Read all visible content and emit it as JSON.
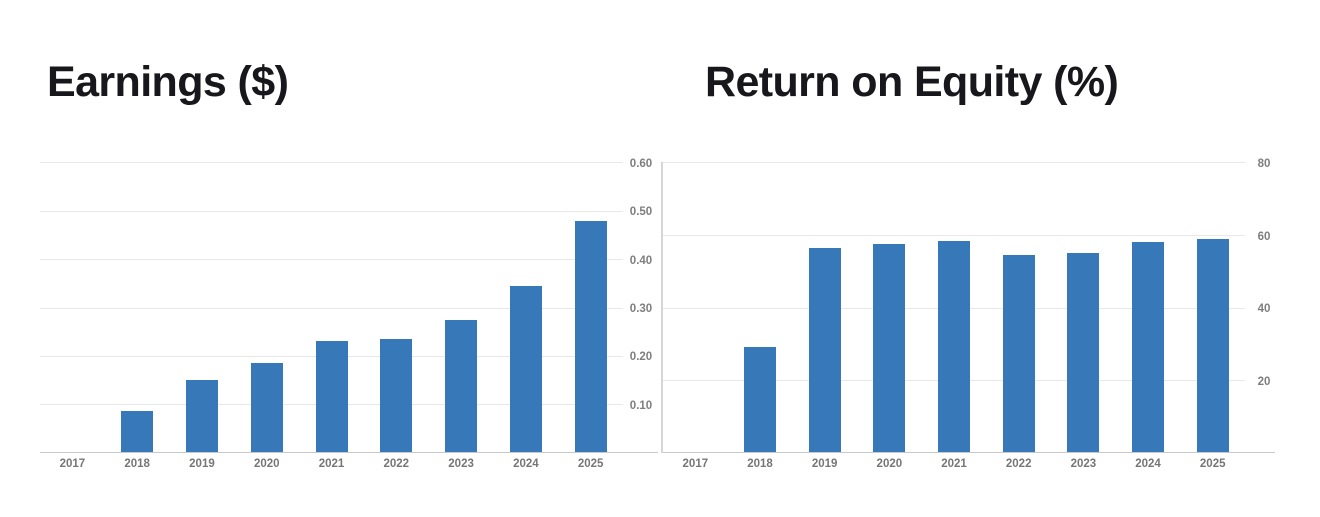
{
  "page_background": "#ffffff",
  "colors": {
    "bar": "#3778b9",
    "gridline": "#e8e8e8",
    "baseline": "#c9c9c9",
    "axis_divider": "#d6d6d6",
    "tick_text": "#7e7e7e",
    "title_text": "#17171c"
  },
  "chart_data": [
    {
      "type": "bar",
      "title": "Earnings ($)",
      "xlabel": "",
      "ylabel": "",
      "legend": "none",
      "grid": true,
      "bar_color": "#3778b9",
      "categories": [
        "2017",
        "2018",
        "2019",
        "2020",
        "2021",
        "2022",
        "2023",
        "2024",
        "2025"
      ],
      "values": [
        null,
        0.085,
        0.15,
        0.185,
        0.23,
        0.235,
        0.275,
        0.345,
        0.48
      ],
      "y_axis": {
        "side": "right",
        "min": 0,
        "max": 0.6,
        "ticks": [
          {
            "value": 0.1,
            "label": "0.10"
          },
          {
            "value": 0.2,
            "label": "0.20"
          },
          {
            "value": 0.3,
            "label": "0.30"
          },
          {
            "value": 0.4,
            "label": "0.40"
          },
          {
            "value": 0.5,
            "label": "0.50"
          },
          {
            "value": 0.6,
            "label": "0.60"
          }
        ]
      }
    },
    {
      "type": "bar",
      "title": "Return on Equity (%)",
      "xlabel": "",
      "ylabel": "",
      "legend": "none",
      "grid": true,
      "bar_color": "#3778b9",
      "categories": [
        "2017",
        "2018",
        "2019",
        "2020",
        "2021",
        "2022",
        "2023",
        "2024",
        "2025"
      ],
      "values": [
        null,
        29,
        56.5,
        57.5,
        58.5,
        54.5,
        55,
        58,
        59
      ],
      "y_axis": {
        "side": "right",
        "min": 0,
        "max": 80,
        "ticks": [
          {
            "value": 20,
            "label": "20"
          },
          {
            "value": 40,
            "label": "40"
          },
          {
            "value": 60,
            "label": "60"
          },
          {
            "value": 80,
            "label": "80"
          }
        ]
      }
    }
  ]
}
